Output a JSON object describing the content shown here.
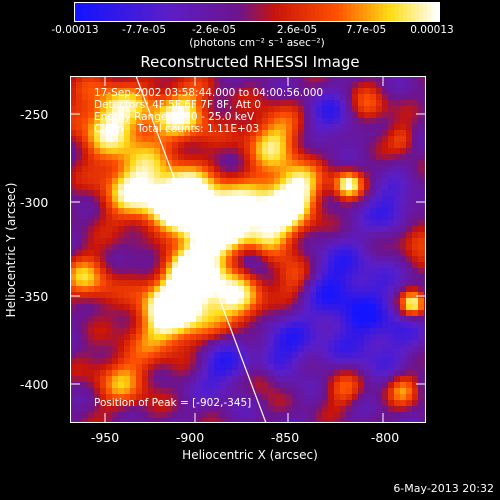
{
  "colorbar": {
    "ticks": [
      "-0.00013",
      "-7.7e-05",
      "-2.6e-05",
      "2.6e-05",
      "7.7e-05",
      "0.00013"
    ],
    "unit_text": "(photons cm⁻² s⁻¹ asec⁻²)",
    "min": -0.00013,
    "max": 0.00013
  },
  "title": "Reconstructed RHESSI Image",
  "info": {
    "time_range": "17-Sep-2002 03:58:44.000 to 04:00:56.000",
    "detectors": "Detectors: 4F 5F 6F 7F 8F, Att 0",
    "energy_range": "Energy Range: 12.0 - 25.0 keV",
    "clean_counts": "Clean    Total counts: 1.11E+03",
    "peak_position": "Position of Peak = [-902,-345]"
  },
  "axes": {
    "xlabel": "Heliocentric X (arcsec)",
    "ylabel": "Heliocentric Y (arcsec)",
    "xticks": [
      "-950",
      "-900",
      "-850",
      "-800"
    ],
    "yticks": [
      "-250",
      "-300",
      "-350",
      "-400"
    ],
    "xlim": [
      -962,
      -773
    ],
    "ylim": [
      -421,
      -236
    ]
  },
  "footer_date": "6-May-2013 20:32",
  "colors": {
    "background": "#000000",
    "text": "#ffffff"
  }
}
